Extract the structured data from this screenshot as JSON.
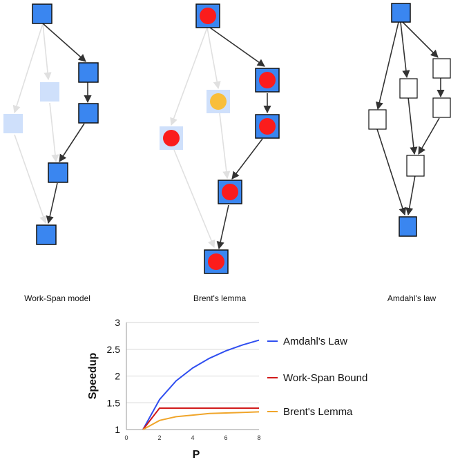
{
  "colors": {
    "node_blue": "#3a86f0",
    "node_faded": "#cfe0fb",
    "node_border": "#111111",
    "edge": "#333333",
    "edge_faded": "#e0e0e0",
    "dot_red": "#fb1c1c",
    "dot_yellow": "#f9be3a",
    "amdahl": "#2f4ef0",
    "workspan": "#d11a1a",
    "brent": "#f0a52a"
  },
  "captions": {
    "workspan": "Work-Span model",
    "brent": "Brent's lemma",
    "amdahl": "Amdahl's law"
  },
  "chart_data": {
    "type": "line",
    "xlabel": "P",
    "ylabel": "Speedup",
    "xlim": [
      0,
      8
    ],
    "ylim": [
      1,
      3
    ],
    "xticks": [
      0,
      2,
      4,
      6,
      8
    ],
    "yticks": [
      1,
      1.5,
      2,
      2.5,
      3
    ],
    "ytick_labels": [
      "1",
      "1.5",
      "2",
      "2.5",
      "3"
    ],
    "grid": "horizontal",
    "legend_position": "right",
    "series": [
      {
        "name": "Amdahl's Law",
        "x": [
          1,
          2,
          3,
          4,
          5,
          6,
          7,
          8
        ],
        "values": [
          1.0,
          1.56,
          1.91,
          2.15,
          2.33,
          2.47,
          2.58,
          2.67
        ]
      },
      {
        "name": "Work-Span Bound",
        "x": [
          1,
          2,
          3,
          4,
          5,
          6,
          7,
          8
        ],
        "values": [
          1.0,
          1.4,
          1.4,
          1.4,
          1.4,
          1.4,
          1.4,
          1.4
        ]
      },
      {
        "name": "Brent's Lemma",
        "x": [
          1,
          2,
          3,
          4,
          5,
          6,
          7,
          8
        ],
        "values": [
          1.0,
          1.17,
          1.24,
          1.27,
          1.3,
          1.31,
          1.32,
          1.33
        ]
      }
    ]
  }
}
